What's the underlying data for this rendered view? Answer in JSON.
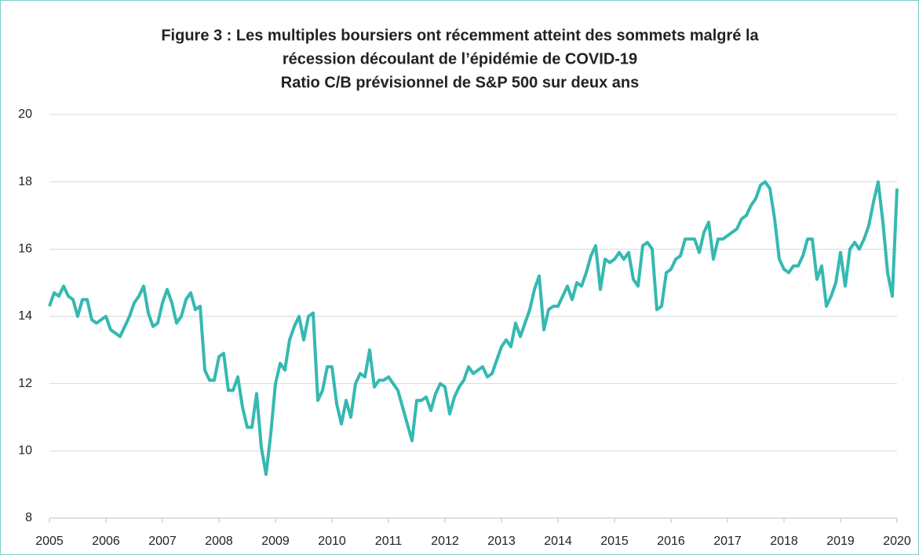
{
  "chart_data": {
    "type": "line",
    "title": [
      "Figure 3 : Les multiples boursiers ont récemment atteint des sommets malgré la",
      "récession découlant de l’épidémie de COVID-19"
    ],
    "subtitle": "Ratio C/B prévisionnel de S&P 500 sur deux ans",
    "categories": [
      "2005",
      null,
      null,
      null,
      null,
      null,
      null,
      null,
      null,
      null,
      null,
      null,
      "2006",
      null,
      null,
      null,
      null,
      null,
      null,
      null,
      null,
      null,
      null,
      null,
      "2007",
      null,
      null,
      null,
      null,
      null,
      null,
      null,
      null,
      null,
      null,
      null,
      "2008",
      null,
      null,
      null,
      null,
      null,
      null,
      null,
      null,
      null,
      null,
      null,
      "2009",
      null,
      null,
      null,
      null,
      null,
      null,
      null,
      null,
      null,
      null,
      null,
      "2010",
      null,
      null,
      null,
      null,
      null,
      null,
      null,
      null,
      null,
      null,
      null,
      "2011",
      null,
      null,
      null,
      null,
      null,
      null,
      null,
      null,
      null,
      null,
      null,
      "2012",
      null,
      null,
      null,
      null,
      null,
      null,
      null,
      null,
      null,
      null,
      null,
      "2013",
      null,
      null,
      null,
      null,
      null,
      null,
      null,
      null,
      null,
      null,
      null,
      "2014",
      null,
      null,
      null,
      null,
      null,
      null,
      null,
      null,
      null,
      null,
      null,
      "2015",
      null,
      null,
      null,
      null,
      null,
      null,
      null,
      null,
      null,
      null,
      null,
      "2016",
      null,
      null,
      null,
      null,
      null,
      null,
      null,
      null,
      null,
      null,
      null,
      "2017",
      null,
      null,
      null,
      null,
      null,
      null,
      null,
      null,
      null,
      null,
      null,
      "2018",
      null,
      null,
      null,
      null,
      null,
      null,
      null,
      null,
      null,
      null,
      null,
      "2019",
      null,
      null,
      null,
      null,
      null,
      null,
      null,
      null,
      null,
      null,
      null,
      "2020"
    ],
    "values": [
      14.3,
      14.7,
      14.6,
      14.9,
      14.6,
      14.5,
      14.0,
      14.5,
      14.5,
      13.9,
      13.8,
      13.9,
      14.0,
      13.6,
      13.5,
      13.4,
      13.7,
      14.0,
      14.4,
      14.6,
      14.9,
      14.1,
      13.7,
      13.8,
      14.4,
      14.8,
      14.4,
      13.8,
      14.0,
      14.5,
      14.7,
      14.2,
      14.3,
      12.4,
      12.1,
      12.1,
      12.8,
      12.9,
      11.8,
      11.8,
      12.2,
      11.3,
      10.7,
      10.7,
      11.7,
      10.1,
      9.3,
      10.5,
      12.0,
      12.6,
      12.4,
      13.3,
      13.7,
      14.0,
      13.3,
      14.0,
      14.1,
      11.5,
      11.8,
      12.5,
      12.5,
      11.4,
      10.8,
      11.5,
      11.0,
      12.0,
      12.3,
      12.2,
      13.0,
      11.9,
      12.1,
      12.1,
      12.2,
      12.0,
      11.8,
      11.3,
      10.8,
      10.3,
      11.5,
      11.5,
      11.6,
      11.2,
      11.7,
      12.0,
      11.9,
      11.1,
      11.6,
      11.9,
      12.1,
      12.5,
      12.3,
      12.4,
      12.5,
      12.2,
      12.3,
      12.7,
      13.1,
      13.3,
      13.1,
      13.8,
      13.4,
      13.8,
      14.2,
      14.8,
      15.2,
      13.6,
      14.2,
      14.3,
      14.3,
      14.6,
      14.9,
      14.5,
      15.0,
      14.9,
      15.3,
      15.8,
      16.1,
      14.8,
      15.7,
      15.6,
      15.7,
      15.9,
      15.7,
      15.9,
      15.1,
      14.9,
      16.1,
      16.2,
      16.0,
      14.2,
      14.3,
      15.3,
      15.4,
      15.7,
      15.8,
      16.3,
      16.3,
      16.3,
      15.9,
      16.5,
      16.8,
      15.7,
      16.3,
      16.3,
      16.4,
      16.5,
      16.6,
      16.9,
      17.0,
      17.3,
      17.5,
      17.9,
      18.0,
      17.8,
      16.9,
      15.7,
      15.4,
      15.3,
      15.5,
      15.5,
      15.8,
      16.3,
      16.3,
      15.1,
      15.5,
      14.3,
      14.6,
      15.0,
      15.9,
      14.9,
      16.0,
      16.2,
      16.0,
      16.3,
      16.7,
      17.4,
      18.0,
      16.8,
      15.3,
      14.6,
      17.8
    ],
    "color": "#35b9b1",
    "ylim": [
      8,
      20
    ],
    "yticks": [
      8,
      10,
      12,
      14,
      16,
      18,
      20
    ],
    "grid": true
  }
}
